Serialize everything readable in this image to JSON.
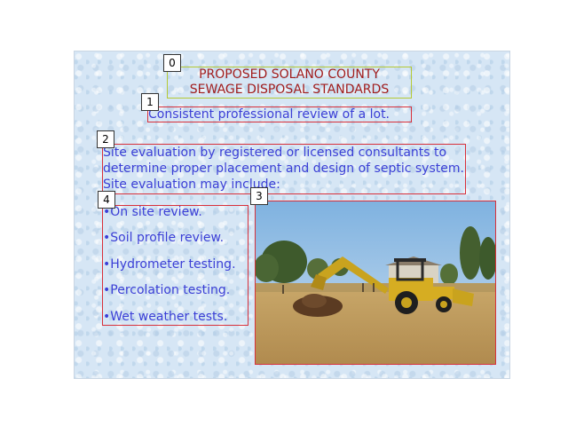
{
  "slide": {
    "title_line1": "PROPOSED SOLANO COUNTY",
    "title_line2": "SEWAGE DISPOSAL STANDARDS",
    "subtitle": "Consistent professional review of a lot.",
    "paragraph": "Site evaluation by registered or licensed consultants to determine proper placement and design of septic system.  Site evaluation may include:",
    "bullets": [
      "•On site review.",
      "•Soil profile review.",
      "•Hydrometer testing.",
      "•Percolation testing.",
      "•Wet weather tests."
    ]
  },
  "labels": [
    "0",
    "1",
    "2",
    "3",
    "4"
  ]
}
